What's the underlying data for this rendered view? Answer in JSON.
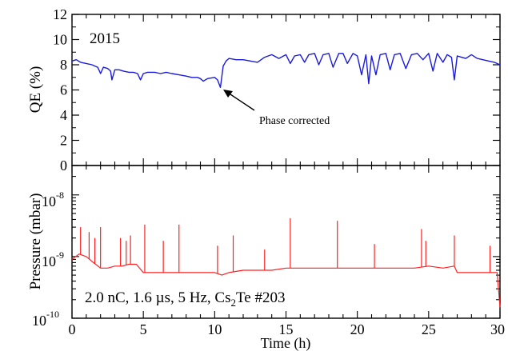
{
  "chart_data": [
    {
      "type": "line",
      "panel": "top",
      "year_label": "2015",
      "ylabel": "QE (%)",
      "ylim": [
        0,
        12
      ],
      "yticks": [
        0,
        2,
        4,
        6,
        8,
        10,
        12
      ],
      "xlim": [
        0,
        30
      ],
      "grid": false,
      "annotation": {
        "text": "Phase corrected",
        "points_to": {
          "x": 10.4,
          "y": 6.5
        }
      },
      "colors": {
        "series": "#1a1adc",
        "year": "#1fa9d6"
      },
      "series": [
        {
          "x": [
            0,
            0.3,
            0.6,
            1,
            1.4,
            1.6,
            1.8,
            2,
            2.2,
            2.5,
            2.7,
            2.8,
            3,
            3.3,
            3.6,
            4,
            4.3,
            4.6,
            4.8,
            5,
            5.3,
            5.8,
            6.2,
            6.6,
            7,
            7.5,
            8,
            8.4,
            8.8,
            9,
            9.2,
            9.5,
            10,
            10.2,
            10.4,
            10.6,
            10.8,
            11,
            11.5,
            12,
            12.5,
            13,
            13.5,
            14,
            14.5,
            15,
            15.3,
            15.6,
            16,
            16.3,
            16.6,
            17,
            17.3,
            17.6,
            18,
            18.3,
            18.7,
            19,
            19.3,
            19.7,
            20,
            20.3,
            20.6,
            20.8,
            21,
            21.3,
            21.6,
            22,
            22.3,
            22.6,
            23,
            23.4,
            23.8,
            24.2,
            24.6,
            25,
            25.3,
            25.6,
            26,
            26.3,
            26.6,
            26.8,
            27,
            27.3,
            27.6,
            28,
            28.4,
            28.8,
            29.2,
            29.6,
            30
          ],
          "y": [
            8.3,
            8.4,
            8.2,
            8.1,
            8.0,
            7.9,
            7.8,
            7.3,
            7.8,
            7.7,
            7.5,
            6.8,
            7.6,
            7.6,
            7.5,
            7.4,
            7.4,
            7.3,
            6.8,
            7.3,
            7.4,
            7.4,
            7.3,
            7.4,
            7.3,
            7.2,
            7.1,
            7.0,
            7.0,
            6.9,
            6.7,
            6.9,
            7.0,
            6.8,
            6.2,
            7.9,
            8.3,
            8.5,
            8.4,
            8.4,
            8.3,
            8.2,
            8.6,
            8.8,
            8.5,
            8.8,
            8.1,
            8.7,
            8.8,
            8.2,
            8.8,
            8.9,
            8.0,
            8.8,
            8.9,
            7.8,
            8.9,
            8.9,
            8.1,
            8.9,
            8.7,
            7.2,
            8.8,
            6.5,
            8.7,
            7.2,
            8.8,
            8.9,
            7.6,
            8.8,
            8.9,
            7.7,
            8.8,
            8.9,
            8.4,
            8.9,
            7.5,
            8.9,
            8.2,
            8.8,
            8.6,
            6.8,
            8.7,
            8.6,
            8.5,
            8.8,
            8.5,
            8.4,
            8.3,
            8.2,
            8.0
          ]
        }
      ]
    },
    {
      "type": "line",
      "panel": "bottom",
      "ylabel": "Pressure (mbar)",
      "xlabel": "Time (h)",
      "yscale": "log",
      "ylim": [
        1e-10,
        3e-08
      ],
      "ytick_labels": [
        "10",
        "-10",
        "10",
        "-9",
        "10",
        "-8"
      ],
      "yticks_values": [
        1e-10,
        1e-09,
        1e-08
      ],
      "xlim": [
        0,
        30
      ],
      "xticks": [
        0,
        5,
        10,
        15,
        20,
        25,
        30
      ],
      "grid": false,
      "colors": {
        "series": "#ff2020"
      },
      "legend_text": {
        "main": "2.0 nC, 1.6 µs, 5 Hz, Cs",
        "sub": "2",
        "tail": "Te #203"
      },
      "series": [
        {
          "x": [
            0,
            0.5,
            1,
            1.5,
            2,
            2.5,
            3,
            3.5,
            4,
            4.5,
            5,
            6,
            7,
            8,
            9,
            10,
            10.5,
            11,
            12,
            13,
            14,
            15,
            16,
            17,
            18,
            19,
            20,
            21,
            22,
            23,
            24,
            25,
            26,
            26.8,
            27,
            28,
            29,
            29.5,
            29.8,
            30
          ],
          "y": [
            9e-10,
            1.1e-09,
            1e-09,
            8e-10,
            6.5e-10,
            6.5e-10,
            7e-10,
            7e-10,
            7.5e-10,
            7.5e-10,
            5.5e-10,
            5.5e-10,
            5.5e-10,
            5.5e-10,
            5.5e-10,
            5.5e-10,
            5e-10,
            5.5e-10,
            6e-10,
            6e-10,
            6e-10,
            6.5e-10,
            6.5e-10,
            6.5e-10,
            6.5e-10,
            6.5e-10,
            6.5e-10,
            6.5e-10,
            6.5e-10,
            6.5e-10,
            6.5e-10,
            7e-10,
            6.5e-10,
            7e-10,
            5.5e-10,
            5.5e-10,
            5.5e-10,
            5.5e-10,
            5.5e-10,
            1.5e-10
          ]
        }
      ],
      "spikes": [
        {
          "x": 0.6,
          "y": 3e-09
        },
        {
          "x": 1.2,
          "y": 2.5e-09
        },
        {
          "x": 1.6,
          "y": 2e-09
        },
        {
          "x": 2.0,
          "y": 3e-09
        },
        {
          "x": 3.4,
          "y": 2e-09
        },
        {
          "x": 3.8,
          "y": 1.8e-09
        },
        {
          "x": 4.1,
          "y": 2.2e-09
        },
        {
          "x": 5.1,
          "y": 3.3e-09
        },
        {
          "x": 6.4,
          "y": 1.8e-09
        },
        {
          "x": 7.5,
          "y": 3.3e-09
        },
        {
          "x": 10.2,
          "y": 1.5e-09
        },
        {
          "x": 11.3,
          "y": 2.2e-09
        },
        {
          "x": 13.5,
          "y": 1.3e-09
        },
        {
          "x": 15.3,
          "y": 4.2e-09
        },
        {
          "x": 18.6,
          "y": 3.8e-09
        },
        {
          "x": 21.2,
          "y": 1.6e-09
        },
        {
          "x": 24.5,
          "y": 2.8e-09
        },
        {
          "x": 24.8,
          "y": 1.8e-09
        },
        {
          "x": 26.8,
          "y": 2.2e-09
        },
        {
          "x": 29.3,
          "y": 1.5e-09
        }
      ]
    }
  ]
}
